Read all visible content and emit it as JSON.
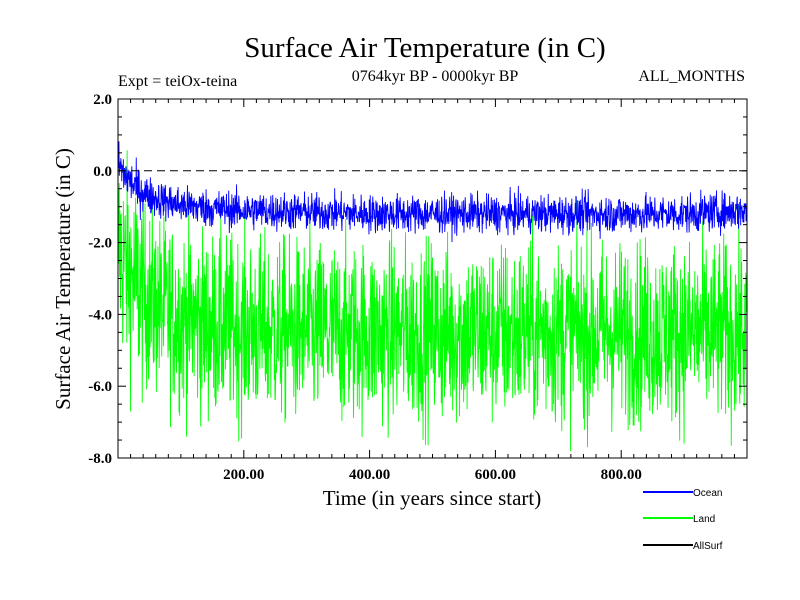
{
  "chart_data": {
    "type": "line",
    "title": "Surface Air Temperature (in C)",
    "subtitle": "0764kyr BP - 0000kyr BP",
    "experiment": "Expt = teiOx-teina",
    "months": "ALL_MONTHS",
    "xlabel": "Time (in years since start)",
    "ylabel": "Surface Air Temperature (in C)",
    "xlim": [
      0,
      1000
    ],
    "ylim": [
      -8.0,
      2.0
    ],
    "x_ticks": [
      200,
      400,
      600,
      800
    ],
    "x_tick_labels": [
      "200.00",
      "400.00",
      "600.00",
      "800.00"
    ],
    "y_ticks": [
      -8,
      -6,
      -4,
      -2,
      0,
      2
    ],
    "y_tick_labels": [
      "-8.0",
      "-6.0",
      "-4.0",
      "-2.0",
      "0.0",
      "2.0"
    ],
    "reference_line": {
      "y": 0.0,
      "style": "dashed"
    },
    "series": [
      {
        "name": "Land",
        "color": "#00ff00",
        "summary": {
          "start_mean": -2.0,
          "equilibrium_mean": -4.5,
          "amplitude_low": -7.3,
          "amplitude_high": -1.6
        },
        "x": [
          0,
          10,
          20,
          30,
          50,
          75,
          100,
          150,
          200,
          300,
          400,
          500,
          600,
          700,
          800,
          900,
          1000
        ],
        "values": [
          -2.0,
          -2.6,
          -2.9,
          -3.2,
          -3.6,
          -3.9,
          -4.1,
          -4.3,
          -4.4,
          -4.5,
          -4.5,
          -4.5,
          -4.5,
          -4.5,
          -4.5,
          -4.5,
          -4.5
        ]
      },
      {
        "name": "Ocean",
        "color": "#0000ff",
        "summary": {
          "start_mean": 0.2,
          "equilibrium_mean": -1.2,
          "amplitude_low": -1.7,
          "amplitude_high": -0.3
        },
        "x": [
          0,
          10,
          20,
          30,
          50,
          75,
          100,
          150,
          200,
          300,
          400,
          500,
          600,
          700,
          800,
          900,
          1000
        ],
        "values": [
          0.2,
          -0.1,
          -0.3,
          -0.5,
          -0.7,
          -0.85,
          -0.95,
          -1.05,
          -1.1,
          -1.15,
          -1.2,
          -1.2,
          -1.2,
          -1.2,
          -1.2,
          -1.2,
          -1.1
        ]
      },
      {
        "name": "AllSurf",
        "color": "#000000",
        "x": [],
        "values": []
      }
    ],
    "legend": {
      "placement": "bottom-right",
      "entries": [
        {
          "name": "Ocean",
          "color": "#0000ff"
        },
        {
          "name": "Land",
          "color": "#00ff00"
        },
        {
          "name": "AllSurf",
          "color": "#000000"
        }
      ]
    }
  }
}
